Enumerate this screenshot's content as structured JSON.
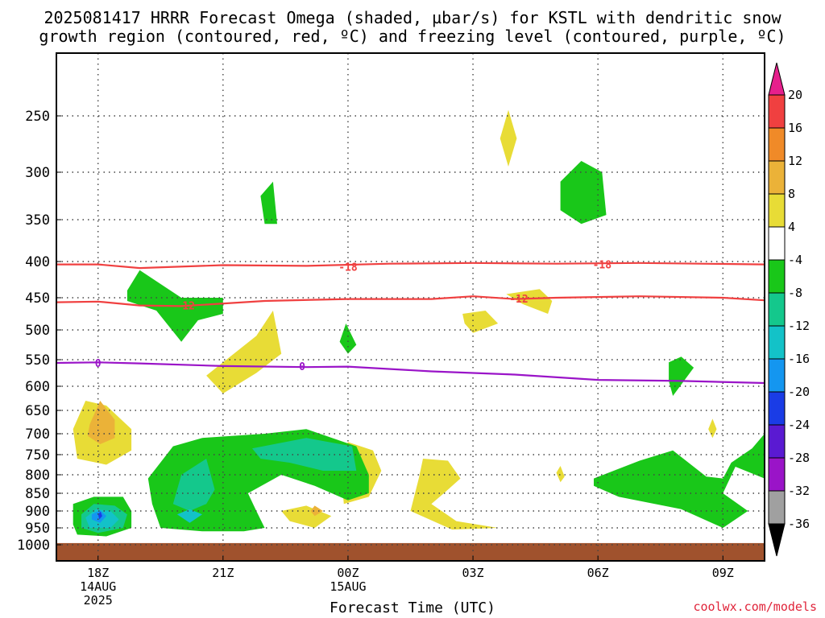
{
  "title_line1": "2025081417 HRRR Forecast Omega (shaded, µbar/s) for KSTL with dendritic snow",
  "title_line2": "growth region (contoured, red, ºC) and freezing level (contoured, purple, ºC)",
  "credit": "coolwx.com/models",
  "chart_data": {
    "type": "heatmap",
    "xlabel": "Forecast Time (UTC)",
    "ylabel": "",
    "x_range_hours": [
      -1,
      16
    ],
    "y_range_hpa": [
      200,
      1025
    ],
    "y_ticks": [
      250,
      300,
      350,
      400,
      450,
      500,
      550,
      600,
      650,
      700,
      750,
      800,
      850,
      900,
      950,
      1000
    ],
    "x_ticks": [
      {
        "h": 0,
        "lines": [
          "18Z",
          "14AUG",
          "2025"
        ]
      },
      {
        "h": 3,
        "lines": [
          "21Z"
        ]
      },
      {
        "h": 6,
        "lines": [
          "00Z",
          "15AUG"
        ]
      },
      {
        "h": 9,
        "lines": [
          "03Z"
        ]
      },
      {
        "h": 12,
        "lines": [
          "06Z"
        ]
      },
      {
        "h": 15,
        "lines": [
          "09Z"
        ]
      }
    ],
    "colorbar": {
      "labels": [
        "20",
        "16",
        "12",
        "8",
        "4",
        "-4",
        "-8",
        "-12",
        "-16",
        "-20",
        "-24",
        "-28",
        "-32",
        "-36"
      ],
      "colors": [
        "#e61f8c",
        "#f04040",
        "#f08a28",
        "#ebb238",
        "#e8dc36",
        "#ffffff",
        "#19c719",
        "#14c88c",
        "#13c2c8",
        "#1496f0",
        "#1a3ce6",
        "#5a1ad2",
        "#9a14c8",
        "#a0a0a0",
        "#000000"
      ]
    },
    "contours": [
      {
        "label": "-18",
        "color": "#f04040",
        "points": [
          [
            -1,
            404
          ],
          [
            0,
            404
          ],
          [
            1,
            409
          ],
          [
            3,
            405
          ],
          [
            5,
            406
          ],
          [
            7,
            403
          ],
          [
            9,
            402
          ],
          [
            11,
            403
          ],
          [
            13,
            402
          ],
          [
            16,
            404
          ]
        ],
        "label_at": [
          [
            6,
            407
          ],
          [
            12.1,
            404
          ]
        ]
      },
      {
        "label": "-12",
        "color": "#f04040",
        "points": [
          [
            -1,
            457
          ],
          [
            0,
            456
          ],
          [
            1,
            462
          ],
          [
            2,
            463
          ],
          [
            4,
            455
          ],
          [
            6,
            452
          ],
          [
            8,
            452
          ],
          [
            9,
            448
          ],
          [
            10,
            452
          ],
          [
            11,
            450
          ],
          [
            13,
            448
          ],
          [
            15,
            450
          ],
          [
            16,
            454
          ]
        ],
        "label_at": [
          [
            2.1,
            462
          ],
          [
            10.1,
            451
          ]
        ]
      },
      {
        "label": "0",
        "color": "#9a14c8",
        "points": [
          [
            -1,
            556
          ],
          [
            0,
            555
          ],
          [
            1,
            557
          ],
          [
            3,
            562
          ],
          [
            5,
            564
          ],
          [
            6,
            563
          ],
          [
            8,
            572
          ],
          [
            10,
            578
          ],
          [
            12,
            588
          ],
          [
            14,
            590
          ],
          [
            16,
            594
          ]
        ],
        "label_at": [
          [
            0,
            556
          ],
          [
            4.9,
            562
          ]
        ]
      }
    ],
    "omega_regions": [
      {
        "level": 4,
        "points": [
          [
            8.75,
            475
          ],
          [
            9.3,
            470
          ],
          [
            9.6,
            490
          ],
          [
            9.0,
            505
          ],
          [
            8.8,
            490
          ]
        ]
      },
      {
        "level": 4,
        "points": [
          [
            9.8,
            445
          ],
          [
            10.6,
            438
          ],
          [
            10.9,
            455
          ],
          [
            10.8,
            475
          ],
          [
            10.2,
            460
          ]
        ]
      },
      {
        "level": 4,
        "points": [
          [
            9.85,
            245
          ],
          [
            10.05,
            270
          ],
          [
            9.85,
            295
          ],
          [
            9.65,
            270
          ]
        ]
      },
      {
        "level": 4,
        "points": [
          [
            2.6,
            580
          ],
          [
            3.8,
            510
          ],
          [
            4.2,
            470
          ],
          [
            4.4,
            540
          ],
          [
            3.8,
            575
          ],
          [
            3.0,
            615
          ]
        ]
      },
      {
        "level": 4,
        "points": [
          [
            -0.6,
            690
          ],
          [
            -0.3,
            630
          ],
          [
            0.2,
            640
          ],
          [
            0.8,
            690
          ],
          [
            0.8,
            740
          ],
          [
            0.2,
            775
          ],
          [
            -0.5,
            760
          ]
        ]
      },
      {
        "level": 4,
        "points": [
          [
            5.8,
            760
          ],
          [
            6.0,
            720
          ],
          [
            6.6,
            740
          ],
          [
            6.8,
            790
          ],
          [
            6.5,
            860
          ],
          [
            5.9,
            880
          ]
        ]
      },
      {
        "level": 4,
        "points": [
          [
            4.4,
            900
          ],
          [
            5.0,
            885
          ],
          [
            5.6,
            915
          ],
          [
            5.2,
            950
          ],
          [
            4.6,
            930
          ]
        ]
      },
      {
        "level": 4,
        "points": [
          [
            7.7,
            810
          ],
          [
            7.8,
            760
          ],
          [
            8.4,
            765
          ],
          [
            8.7,
            810
          ],
          [
            8.3,
            850
          ],
          [
            8.0,
            880
          ],
          [
            8.6,
            930
          ],
          [
            9.6,
            950
          ],
          [
            8.5,
            955
          ],
          [
            7.5,
            900
          ]
        ]
      },
      {
        "level": 4,
        "points": [
          [
            11.0,
            795
          ],
          [
            11.1,
            778
          ],
          [
            11.2,
            805
          ],
          [
            11.1,
            820
          ]
        ]
      },
      {
        "level": 4,
        "points": [
          [
            14.65,
            690
          ],
          [
            14.75,
            668
          ],
          [
            14.85,
            690
          ],
          [
            14.75,
            710
          ]
        ]
      },
      {
        "level": 12,
        "points": [
          [
            -0.2,
            680
          ],
          [
            0.05,
            630
          ],
          [
            0.4,
            670
          ],
          [
            0.4,
            710
          ],
          [
            0.05,
            725
          ],
          [
            -0.25,
            705
          ]
        ]
      },
      {
        "level": 12,
        "points": [
          [
            5.1,
            900
          ],
          [
            5.2,
            885
          ],
          [
            5.4,
            900
          ],
          [
            5.2,
            915
          ]
        ]
      },
      {
        "level": -4,
        "points": [
          [
            0.7,
            440
          ],
          [
            1.0,
            412
          ],
          [
            2.0,
            450
          ],
          [
            3.0,
            450
          ],
          [
            3.0,
            475
          ],
          [
            2.4,
            485
          ],
          [
            2.0,
            520
          ],
          [
            1.4,
            470
          ],
          [
            0.7,
            455
          ]
        ]
      },
      {
        "level": -4,
        "points": [
          [
            3.9,
            325
          ],
          [
            4.2,
            310
          ],
          [
            4.3,
            355
          ],
          [
            4.0,
            355
          ]
        ]
      },
      {
        "level": -4,
        "points": [
          [
            5.8,
            520
          ],
          [
            5.95,
            490
          ],
          [
            6.2,
            525
          ],
          [
            6.0,
            540
          ]
        ]
      },
      {
        "level": -4,
        "points": [
          [
            11.1,
            310
          ],
          [
            11.6,
            290
          ],
          [
            12.1,
            300
          ],
          [
            12.2,
            345
          ],
          [
            11.6,
            355
          ],
          [
            11.1,
            340
          ]
        ]
      },
      {
        "level": -4,
        "points": [
          [
            13.7,
            555
          ],
          [
            14.0,
            545
          ],
          [
            14.3,
            565
          ],
          [
            13.8,
            620
          ],
          [
            13.7,
            590
          ]
        ]
      },
      {
        "level": -4,
        "points": [
          [
            1.2,
            810
          ],
          [
            1.8,
            730
          ],
          [
            2.5,
            710
          ],
          [
            4.0,
            700
          ],
          [
            5.0,
            690
          ],
          [
            6.2,
            730
          ],
          [
            6.5,
            800
          ],
          [
            6.5,
            850
          ],
          [
            6.0,
            870
          ],
          [
            5.2,
            830
          ],
          [
            4.4,
            800
          ],
          [
            3.6,
            850
          ],
          [
            3.8,
            900
          ],
          [
            4.0,
            950
          ],
          [
            3.5,
            960
          ],
          [
            2.5,
            960
          ],
          [
            1.5,
            950
          ],
          [
            1.3,
            880
          ]
        ]
      },
      {
        "level": -4,
        "points": [
          [
            -0.6,
            880
          ],
          [
            -0.1,
            860
          ],
          [
            0.6,
            860
          ],
          [
            0.8,
            900
          ],
          [
            0.8,
            950
          ],
          [
            0.2,
            975
          ],
          [
            -0.5,
            970
          ],
          [
            -0.6,
            940
          ]
        ]
      },
      {
        "level": -4,
        "points": [
          [
            11.9,
            810
          ],
          [
            13.0,
            765
          ],
          [
            13.8,
            740
          ],
          [
            14.6,
            805
          ],
          [
            15.0,
            810
          ],
          [
            15.2,
            770
          ],
          [
            15.7,
            735
          ],
          [
            16.0,
            700
          ],
          [
            16.0,
            770
          ],
          [
            16.5,
            790
          ],
          [
            16.0,
            810
          ],
          [
            15.3,
            780
          ],
          [
            15.0,
            850
          ],
          [
            15.6,
            900
          ],
          [
            15.0,
            950
          ],
          [
            14.0,
            895
          ],
          [
            12.5,
            860
          ],
          [
            11.9,
            830
          ]
        ]
      },
      {
        "level": -8,
        "points": [
          [
            2.0,
            800
          ],
          [
            2.6,
            760
          ],
          [
            2.8,
            840
          ],
          [
            2.6,
            880
          ],
          [
            2.2,
            900
          ],
          [
            1.8,
            880
          ]
        ]
      },
      {
        "level": -8,
        "points": [
          [
            3.7,
            735
          ],
          [
            5.0,
            710
          ],
          [
            6.1,
            730
          ],
          [
            6.2,
            790
          ],
          [
            5.4,
            790
          ],
          [
            4.6,
            770
          ],
          [
            3.9,
            760
          ]
        ]
      },
      {
        "level": -8,
        "points": [
          [
            -0.4,
            910
          ],
          [
            -0.1,
            880
          ],
          [
            0.4,
            885
          ],
          [
            0.7,
            910
          ],
          [
            0.6,
            950
          ],
          [
            0.0,
            965
          ],
          [
            -0.4,
            950
          ]
        ]
      },
      {
        "level": -12,
        "points": [
          [
            -0.3,
            920
          ],
          [
            -0.05,
            895
          ],
          [
            0.3,
            900
          ],
          [
            0.5,
            925
          ],
          [
            0.3,
            950
          ],
          [
            -0.2,
            950
          ]
        ]
      },
      {
        "level": -12,
        "points": [
          [
            1.9,
            910
          ],
          [
            2.2,
            895
          ],
          [
            2.5,
            910
          ],
          [
            2.2,
            935
          ]
        ]
      },
      {
        "level": -16,
        "points": [
          [
            -0.15,
            910
          ],
          [
            0.05,
            898
          ],
          [
            0.2,
            915
          ],
          [
            0.05,
            935
          ],
          [
            -0.15,
            925
          ]
        ]
      },
      {
        "level": -20,
        "points": [
          [
            0.0,
            910
          ],
          [
            0.06,
            902
          ],
          [
            0.1,
            915
          ],
          [
            0.03,
            925
          ]
        ]
      }
    ],
    "terrain_top_hpa": 995
  }
}
